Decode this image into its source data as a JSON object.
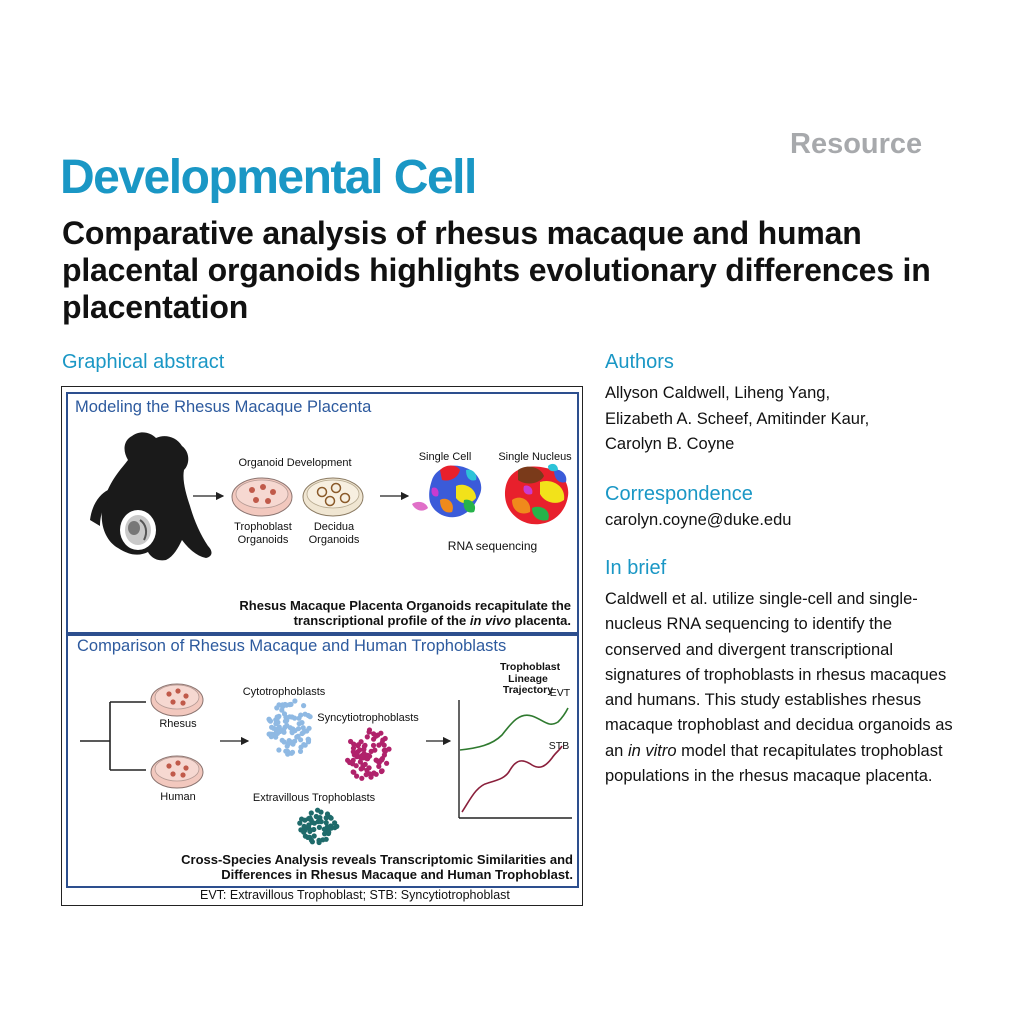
{
  "header": {
    "article_type": "Resource",
    "journal": "Developmental Cell",
    "title": "Comparative analysis of rhesus macaque and human placental organoids highlights evolutionary differences in placentation"
  },
  "sections": {
    "graphical_abstract": "Graphical abstract",
    "authors": "Authors",
    "correspondence": "Correspondence",
    "in_brief": "In brief"
  },
  "authors": {
    "line1": "Allyson Caldwell, Liheng Yang,",
    "line2": "Elizabeth A. Scheef, Amitinder Kaur,",
    "line3": "Carolyn B. Coyne"
  },
  "correspondence": {
    "email": "carolyn.coyne@duke.edu"
  },
  "in_brief": {
    "part1": "Caldwell et al. utilize single-cell and single-nucleus RNA sequencing to identify the conserved and divergent transcriptional signatures of trophoblasts in rhesus macaques and humans. This study establishes rhesus macaque trophoblast and decidua organoids as an ",
    "italic": "in vitro",
    "part2": " model that recapitulates trophoblast populations in the rhesus macaque placenta."
  },
  "graphical_abstract": {
    "panel_a": {
      "title": "Modeling the Rhesus Macaque Placenta",
      "organoid_development": "Organoid Development",
      "trophoblast_organoids": "Trophoblast Organoids",
      "decidua_organoids": "Decidua Organoids",
      "single_cell": "Single Cell",
      "single_nucleus": "Single Nucleus",
      "rna_sequencing": "RNA sequencing",
      "summary_1": "Rhesus Macaque Placenta Organoids recapitulate the",
      "summary_2a": "transcriptional profile of the ",
      "summary_2_italic": "in vivo",
      "summary_2b": " placenta."
    },
    "panel_b": {
      "title": "Comparison of Rhesus Macaque and Human Trophoblasts",
      "rhesus": "Rhesus",
      "human": "Human",
      "cytotrophoblasts": "Cytotrophoblasts",
      "syncytiotrophoblasts": "Syncytiotrophoblasts",
      "extravillous": "Extravillous Trophoblasts",
      "trajectory_title": "Trophoblast Lineage Trajectory",
      "evt": "EVT",
      "stb": "STB",
      "summary_1": "Cross-Species Analysis reveals Transcriptomic Similarities and",
      "summary_2": "Differences in Rhesus Macaque and Human Trophoblast."
    },
    "footnote": "EVT: Extravillous Trophoblast; STB: Syncytiotrophoblast",
    "colors": {
      "panel_border": "#2d4f8e",
      "cytotrophoblast_dots": "#8fb9e3",
      "syncytio_dots": "#b0226b",
      "evt_dots": "#1f6b6b",
      "evt_curve": "#2f7a2f",
      "stb_curve": "#8a1f3b"
    }
  }
}
